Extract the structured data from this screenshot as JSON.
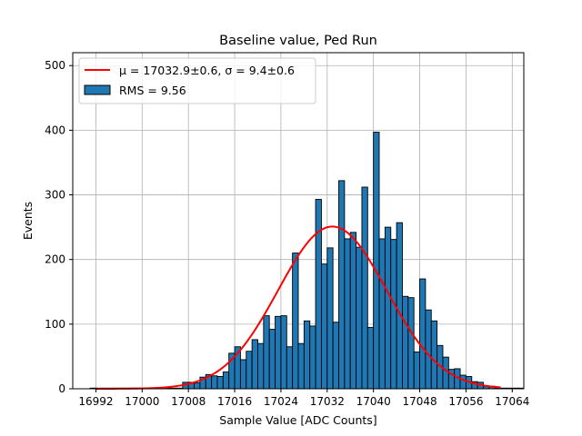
{
  "chart_data": {
    "type": "bar",
    "title": "Baseline value, Ped Run",
    "xlabel": "Sample Value [ADC Counts]",
    "ylabel": "Events",
    "xlim": [
      16988,
      17066
    ],
    "ylim": [
      0,
      520
    ],
    "xticks": [
      16992,
      17000,
      17008,
      17016,
      17024,
      17032,
      17040,
      17048,
      17056,
      17064
    ],
    "yticks": [
      0,
      100,
      200,
      300,
      400,
      500
    ],
    "grid": true,
    "legend_position": "upper-left",
    "bin_start": 16991,
    "bin_width": 1,
    "bar_color": "#1f77b4",
    "fit_color": "#ff0000",
    "values": [
      1,
      1,
      1,
      1,
      1,
      1,
      1,
      1,
      1,
      1,
      1,
      1,
      1,
      1,
      1,
      1,
      10,
      10,
      9,
      18,
      22,
      20,
      19,
      26,
      55,
      65,
      45,
      58,
      76,
      70,
      113,
      92,
      112,
      113,
      65,
      210,
      70,
      105,
      97,
      293,
      193,
      218,
      103,
      322,
      232,
      242,
      219,
      312,
      95,
      397,
      232,
      250,
      231,
      257,
      143,
      141,
      57,
      170,
      122,
      105,
      67,
      49,
      30,
      31,
      21,
      19,
      11,
      10,
      4,
      4,
      1,
      1,
      1,
      1,
      1
    ],
    "fit": {
      "mu": 17032.9,
      "sigma": 9.4,
      "amplitude": 251,
      "x_start": 16992,
      "x_end": 17062
    },
    "legend": [
      {
        "label": "μ = 17032.9±0.6, σ = 9.4±0.6",
        "kind": "line"
      },
      {
        "label": "RMS = 9.56",
        "kind": "patch"
      }
    ]
  }
}
